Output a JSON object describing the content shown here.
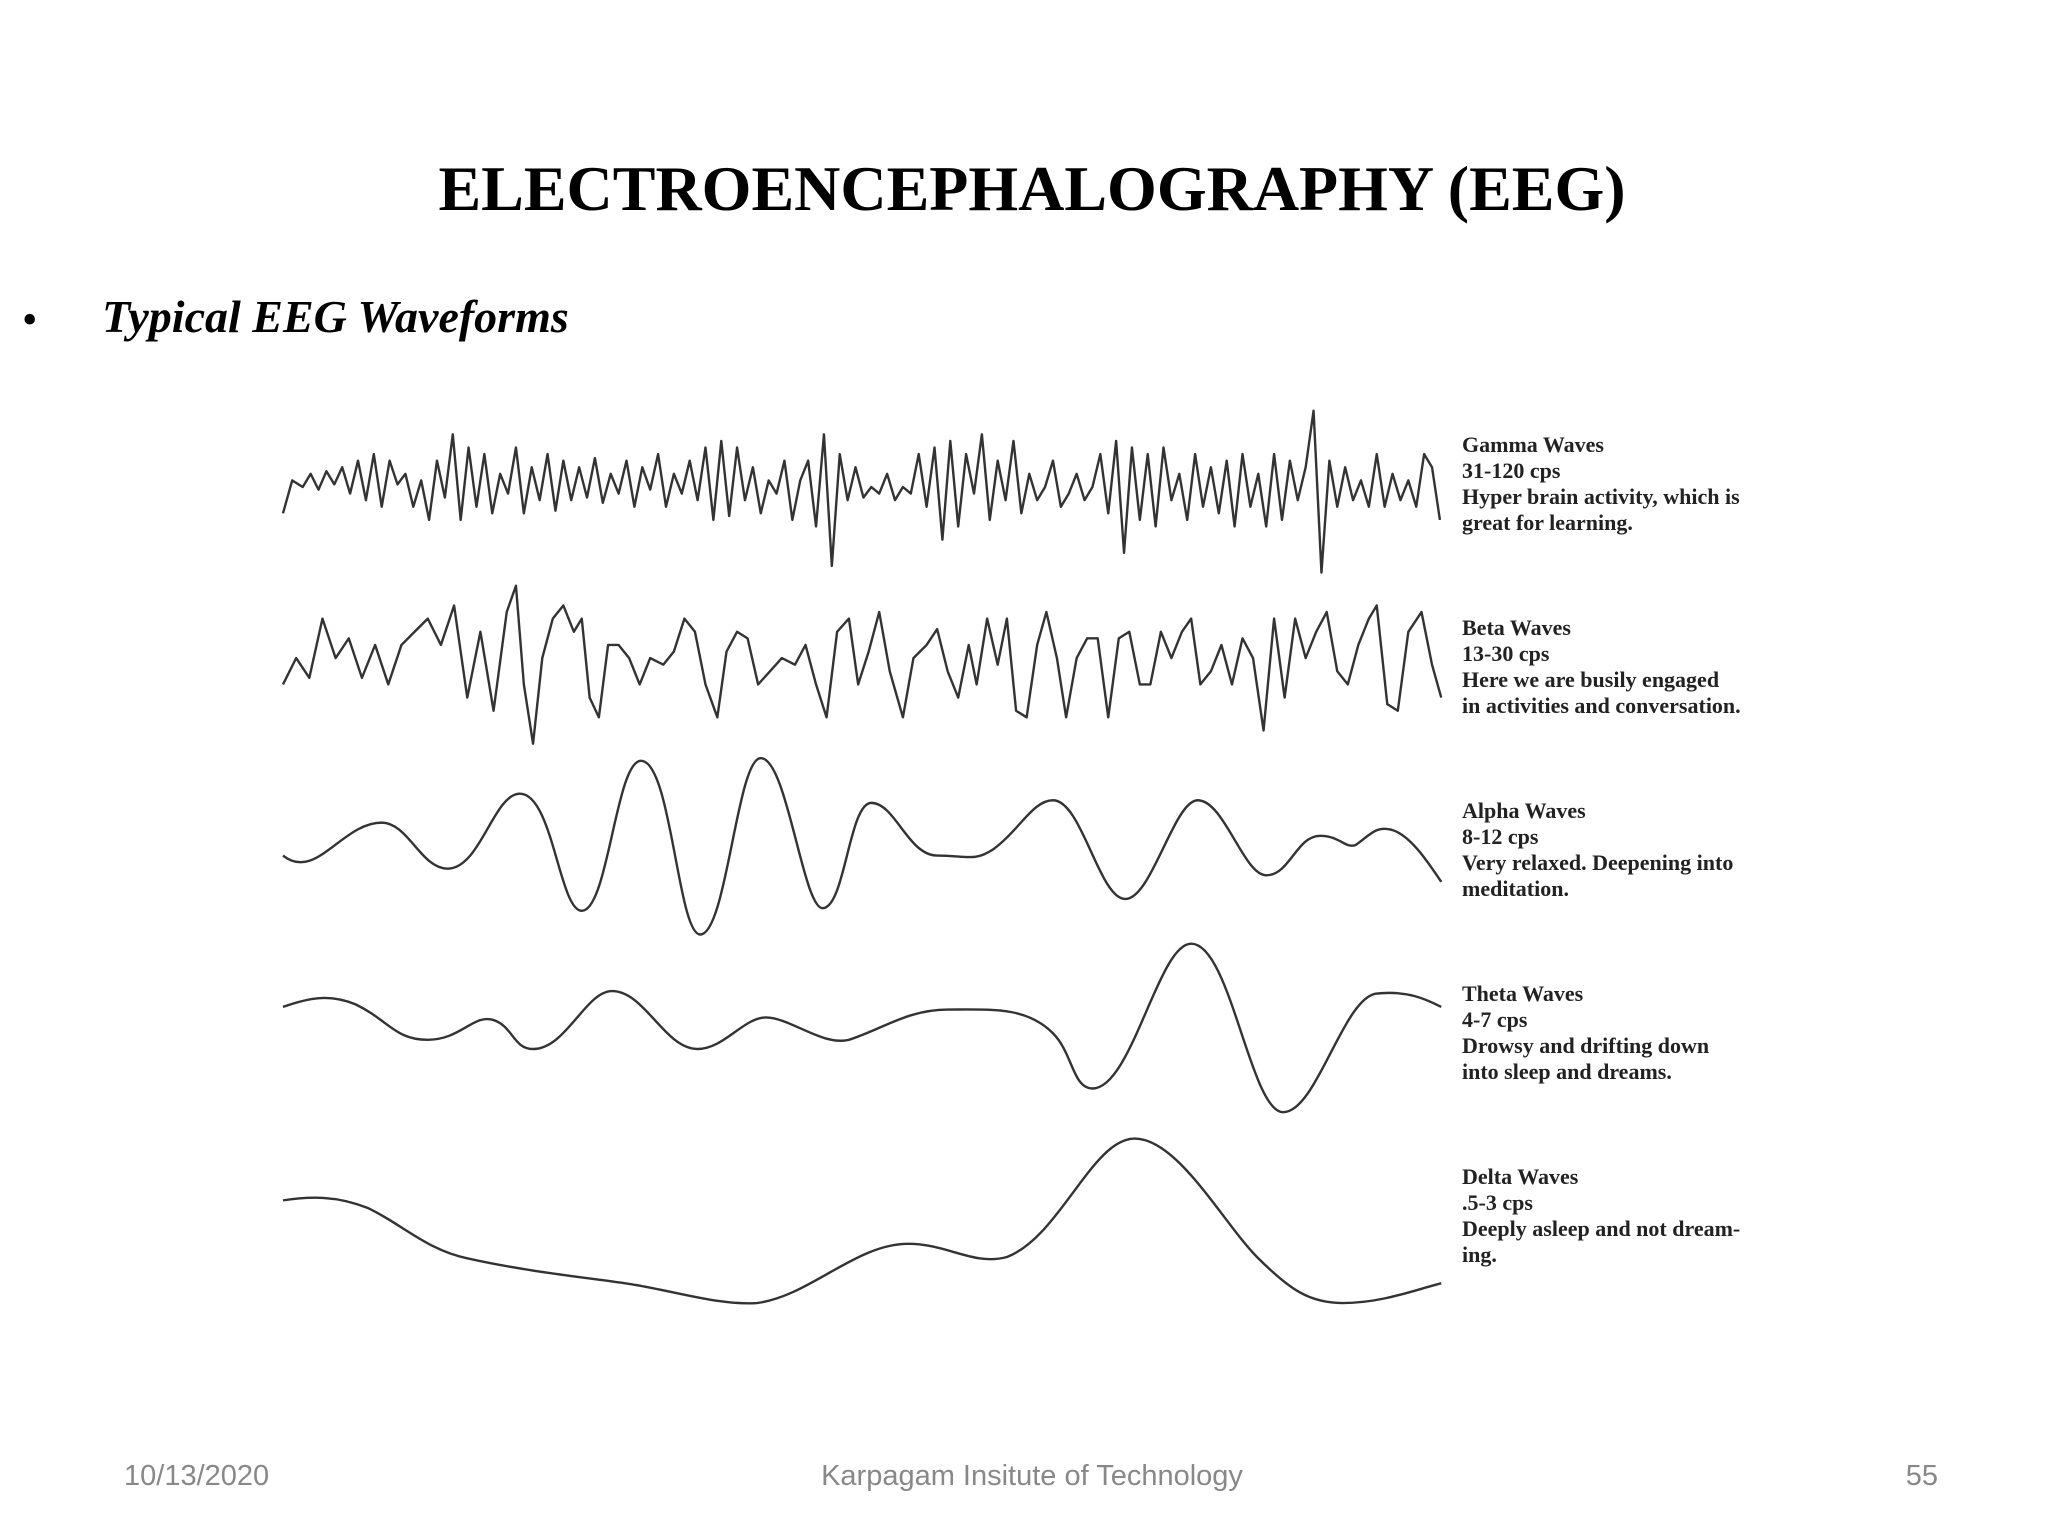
{
  "header": {
    "title": "ELECTROENCEPHALOGRAPHY (EEG)",
    "bullet": "Typical EEG Waveforms"
  },
  "waves": [
    {
      "name": "Gamma Waves",
      "frequency": "31-120 cps",
      "description": [
        "Hyper brain activity, which is",
        "great for learning."
      ]
    },
    {
      "name": "Beta Waves",
      "frequency": "13-30 cps",
      "description": [
        "Here we are busily engaged",
        "in activities and conversation."
      ]
    },
    {
      "name": "Alpha Waves",
      "frequency": "8-12 cps",
      "description": [
        "Very relaxed. Deepening into",
        "meditation."
      ]
    },
    {
      "name": "Theta Waves",
      "frequency": "4-7 cps",
      "description": [
        "Drowsy and drifting down",
        "into sleep and dreams."
      ]
    },
    {
      "name": "Delta Waves",
      "frequency": ".5-3 cps",
      "description": [
        "Deeply asleep and not dream-",
        "ing."
      ]
    }
  ],
  "footer": {
    "date": "10/13/2020",
    "organization": "Karpagam Insitute of Technology",
    "page": "55"
  }
}
